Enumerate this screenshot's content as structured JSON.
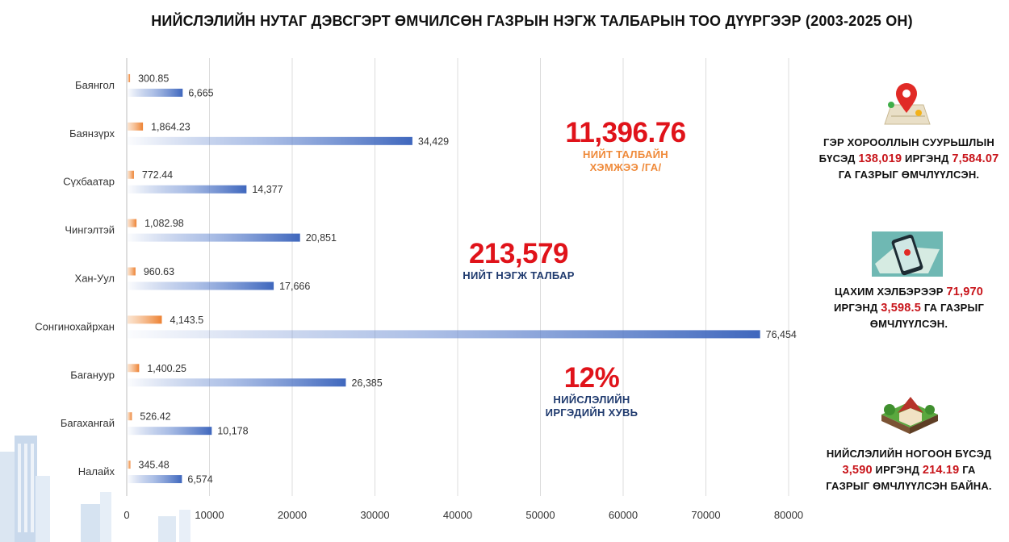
{
  "title": "НИЙСЛЭЛИЙН НУТАГ ДЭВСГЭРТ ӨМЧИЛСӨН ГАЗРЫН НЭГЖ ТАЛБАРЫН ТОО ДҮҮРГЭЭР (2003-2025 ОН)",
  "chart_data": {
    "type": "bar",
    "orientation": "horizontal",
    "categories": [
      "Баянгол",
      "Баянзүрх",
      "Сүхбаатар",
      "Чингэлтэй",
      "Хан-Уул",
      "Сонгинохайрхан",
      "Багануур",
      "Багахангай",
      "Налайх"
    ],
    "series": [
      {
        "values": [
          300.85,
          1864.23,
          772.44,
          1082.98,
          960.63,
          4143.5,
          1400.25,
          526.42,
          345.48
        ],
        "labels": [
          "300.85",
          "1,864.23",
          "772.44",
          "1,082.98",
          "960.63",
          "4,143.5",
          "1,400.25",
          "526.42",
          "345.48"
        ],
        "color": "#ef8a3a"
      },
      {
        "values": [
          6665,
          34429,
          14377,
          20851,
          17666,
          76454,
          26385,
          10178,
          6574
        ],
        "labels": [
          "6,665",
          "34,429",
          "14,377",
          "20,851",
          "17,666",
          "76,454",
          "26,385",
          "10,178",
          "6,574"
        ],
        "color": "#4a72c4"
      }
    ],
    "xlim": [
      0,
      80000
    ],
    "xticks": [
      "0",
      "10000",
      "20000",
      "30000",
      "40000",
      "50000",
      "60000",
      "70000",
      "80000"
    ],
    "xtick_values": [
      0,
      10000,
      20000,
      30000,
      40000,
      50000,
      60000,
      70000,
      80000
    ],
    "grid": true
  },
  "kpis": {
    "area": {
      "value": "11,396.76",
      "label_line1": "НИЙТ ТАЛБАЙН",
      "label_line2": "ХЭМЖЭЭ /ГА/"
    },
    "parcels": {
      "value": "213,579",
      "label": "НИЙТ НЭГЖ ТАЛБАР"
    },
    "share": {
      "value": "12%",
      "label_line1": "НИЙСЛЭЛИЙН",
      "label_line2": "ИРГЭДИЙН ХУВЬ"
    }
  },
  "notes": {
    "ger": {
      "l1": "ГЭР ХОРООЛЛЫН СУУРЬШЛЫН",
      "l2a": "БҮСЭД ",
      "h1": "138,019",
      "l2b": " ИРГЭНД ",
      "h2": "7,584.07",
      "l3": "ГА ГАЗРЫГ ӨМЧЛҮҮЛСЭН."
    },
    "digital": {
      "l1a": "ЦАХИМ ХЭЛБЭРЭЭР ",
      "h1": "71,970",
      "l2a": "ИРГЭНД ",
      "h2": "3,598.5",
      "l2b": " ГА ГАЗРЫГ",
      "l3": "ӨМЧЛҮҮЛСЭН."
    },
    "green": {
      "l1": "НИЙСЛЭЛИЙН НОГООН БҮСЭД",
      "h1": "3,590",
      "l2a": " ИРГЭНД ",
      "h2": "214.19",
      "l2b": " ГА",
      "l3": "ГАЗРЫГ ӨМЧЛҮҮЛСЭН БАЙНА."
    }
  },
  "icons": [
    "map-pin-icon",
    "phone-map-icon",
    "green-house-icon",
    "city-skyline-icon"
  ]
}
